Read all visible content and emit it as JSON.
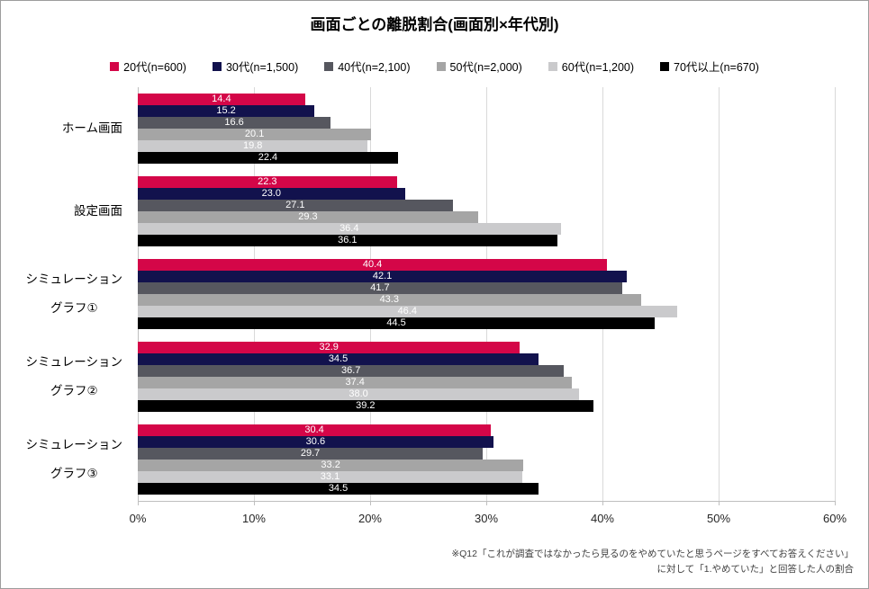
{
  "title": "画面ごとの離脱割合(画面別×年代別)",
  "footnote": {
    "line1": "※Q12「これが調査ではなかったら見るのをやめていたと思うページをすべてお答えください」",
    "line2": "に対して「1.やめていた」と回答した人の割合"
  },
  "colors": {
    "grid": "#d9d9d9",
    "axis": "#bfbfbf",
    "value_label": "#ffffff"
  },
  "chart_data": {
    "type": "bar",
    "orientation": "horizontal",
    "title": "画面ごとの離脱割合(画面別×年代別)",
    "categories": [
      "ホーム画面",
      "設定画面",
      "シミュレーション\nグラフ①",
      "シミュレーション\nグラフ②",
      "シミュレーション\nグラフ③"
    ],
    "series": [
      {
        "name": "20代(n=600)",
        "color": "#d40648",
        "values": [
          14.4,
          22.3,
          40.4,
          32.9,
          30.4
        ]
      },
      {
        "name": "30代(n=1,500)",
        "color": "#12124d",
        "values": [
          15.2,
          23.0,
          42.1,
          34.5,
          30.6
        ]
      },
      {
        "name": "40代(n=2,100)",
        "color": "#56575f",
        "values": [
          16.6,
          27.1,
          41.7,
          36.7,
          29.7
        ]
      },
      {
        "name": "50代(n=2,000)",
        "color": "#a5a5a5",
        "values": [
          20.1,
          29.3,
          43.3,
          37.4,
          33.2
        ]
      },
      {
        "name": "60代(n=1,200)",
        "color": "#cacacc",
        "values": [
          19.8,
          36.4,
          46.4,
          38.0,
          33.1
        ]
      },
      {
        "name": "70代以上(n=670)",
        "color": "#000000",
        "values": [
          22.4,
          36.1,
          44.5,
          39.2,
          34.5
        ]
      }
    ],
    "x_axis": {
      "min": 0,
      "max": 60,
      "ticks": [
        "0%",
        "10%",
        "20%",
        "30%",
        "40%",
        "50%",
        "60%"
      ]
    },
    "value_labels": "centered, one decimal, white",
    "legend_position": "top",
    "grid": true
  }
}
